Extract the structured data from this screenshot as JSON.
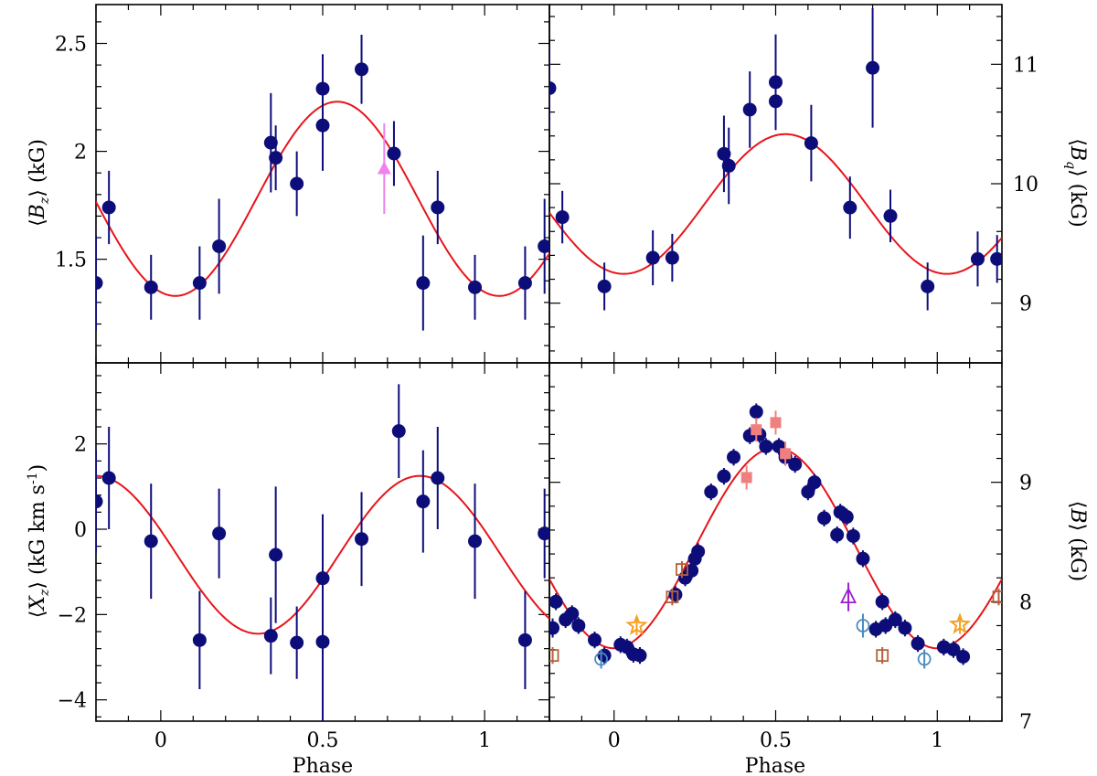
{
  "figure": {
    "xlabel": "Phase",
    "xticks": [
      "0",
      "0.5",
      "1"
    ],
    "xlim": [
      -0.2,
      1.2
    ]
  },
  "chart_data": [
    {
      "type": "scatter",
      "panel": "top-left",
      "ylabel": "⟨B_z⟩ (kG)",
      "ylabel_parts": {
        "pre": "⟨",
        "sym": "B",
        "sub": "z",
        "post": "⟩  (kG)"
      },
      "ylim": [
        1.02,
        2.68
      ],
      "yticks": [
        "1.5",
        "2",
        "2.5"
      ],
      "ytick_values": [
        1.5,
        2.0,
        2.5
      ],
      "fit": {
        "mean": 1.78,
        "amp": 0.45,
        "peak_phase": 0.545
      },
      "series": [
        {
          "name": "data",
          "marker": "filled-circle",
          "color": "#0d0d7a",
          "x": [
            -0.2,
            -0.16,
            -0.03,
            0.12,
            0.18,
            0.34,
            0.355,
            0.42,
            0.5,
            0.5,
            0.62,
            0.72,
            0.81,
            0.855,
            0.97,
            1.125,
            1.185
          ],
          "y": [
            1.39,
            1.74,
            1.37,
            1.39,
            1.56,
            2.04,
            1.97,
            1.85,
            2.29,
            2.12,
            2.38,
            1.99,
            1.39,
            1.74,
            1.37,
            1.39,
            1.56
          ],
          "err": [
            0.22,
            0.17,
            0.15,
            0.17,
            0.22,
            0.23,
            0.15,
            0.15,
            0.16,
            0.21,
            0.16,
            0.15,
            0.22,
            0.17,
            0.15,
            0.17,
            0.22
          ]
        },
        {
          "name": "additional",
          "marker": "filled-triangle",
          "color": "#ee82ee",
          "x": [
            0.69
          ],
          "y": [
            1.92
          ],
          "err": [
            0.21
          ]
        }
      ]
    },
    {
      "type": "scatter",
      "panel": "top-right",
      "ylabel": "⟨B_q⟩ (kG)",
      "ylabel_parts": {
        "pre": "⟨",
        "sym": "B",
        "sub": "q",
        "post": "⟩  (kG)"
      },
      "ylim": [
        8.5,
        11.5
      ],
      "yticks": [
        "9",
        "10",
        "11"
      ],
      "ytick_values": [
        9,
        10,
        11
      ],
      "fit": {
        "mean": 9.83,
        "amp": 0.585,
        "peak_phase": 0.53
      },
      "series": [
        {
          "name": "data",
          "marker": "filled-circle",
          "color": "#0d0d7a",
          "x": [
            -0.2,
            -0.16,
            -0.03,
            0.12,
            0.18,
            0.34,
            0.355,
            0.42,
            0.5,
            0.5,
            0.61,
            0.73,
            0.8,
            0.855,
            0.97,
            1.125,
            1.185
          ],
          "y": [
            10.8,
            9.72,
            9.14,
            9.38,
            9.38,
            10.25,
            10.15,
            10.62,
            10.69,
            10.85,
            10.34,
            9.8,
            10.97,
            9.73,
            9.14,
            9.37,
            9.37
          ],
          "err": [
            0.35,
            0.22,
            0.2,
            0.23,
            0.2,
            0.32,
            0.32,
            0.32,
            0.24,
            0.4,
            0.32,
            0.26,
            0.5,
            0.22,
            0.2,
            0.23,
            0.2
          ]
        }
      ]
    },
    {
      "type": "scatter",
      "panel": "bottom-left",
      "ylabel": "⟨X_z⟩ (kG km s⁻¹)",
      "ylabel_parts": {
        "pre": "⟨",
        "sym": "X",
        "sub": "z",
        "post": "⟩  (kG km s",
        "sup": "-1",
        "post2": ")"
      },
      "ylim": [
        -4.5,
        3.9
      ],
      "yticks": [
        "−4",
        "−2",
        "0",
        "2"
      ],
      "ytick_values": [
        -4,
        -2,
        0,
        2
      ],
      "fit": {
        "mean": -0.6,
        "amp": 1.85,
        "peak_phase": 0.8
      },
      "series": [
        {
          "name": "data",
          "marker": "filled-circle",
          "color": "#0d0d7a",
          "x": [
            -0.2,
            -0.16,
            -0.03,
            0.12,
            0.18,
            0.34,
            0.355,
            0.42,
            0.5,
            0.5,
            0.62,
            0.735,
            0.81,
            0.855,
            0.97,
            1.125,
            1.185
          ],
          "y": [
            0.65,
            1.2,
            -0.28,
            -2.6,
            -0.1,
            -2.5,
            -0.6,
            -2.66,
            -1.15,
            -2.64,
            -0.23,
            2.3,
            0.65,
            1.2,
            -0.28,
            -2.6,
            -0.1
          ],
          "err": [
            1.2,
            1.2,
            1.35,
            1.15,
            1.05,
            0.9,
            1.6,
            0.85,
            1.5,
            1.9,
            1.1,
            1.1,
            1.2,
            1.2,
            1.35,
            1.15,
            1.05
          ]
        }
      ]
    },
    {
      "type": "scatter",
      "panel": "bottom-right",
      "ylabel": "⟨B⟩ (kG)",
      "ylabel_parts": {
        "pre": "⟨",
        "sym": "B",
        "sub": "",
        "post": "⟩  (kG)"
      },
      "ylim": [
        7.0,
        10.0
      ],
      "yticks": [
        "7",
        "8",
        "9"
      ],
      "ytick_values": [
        7,
        8,
        9
      ],
      "fit": {
        "mean": 8.45,
        "amp": 0.84,
        "peak_phase": 0.5
      },
      "series": [
        {
          "name": "main",
          "marker": "filled-circle",
          "color": "#0d0d7a",
          "x": [
            -0.19,
            -0.18,
            -0.15,
            -0.13,
            -0.11,
            -0.06,
            -0.03,
            0.02,
            0.04,
            0.06,
            0.08,
            0.19,
            0.22,
            0.24,
            0.25,
            0.26,
            0.3,
            0.34,
            0.37,
            0.42,
            0.44,
            0.45,
            0.47,
            0.51,
            0.53,
            0.56,
            0.6,
            0.62,
            0.65,
            0.69,
            0.7,
            0.72,
            0.74,
            0.77,
            0.81,
            0.83,
            0.84,
            0.87,
            0.9,
            0.94,
            1.02,
            1.05,
            1.08
          ],
          "y": [
            7.78,
            8.0,
            7.85,
            7.9,
            7.8,
            7.68,
            7.55,
            7.64,
            7.62,
            7.56,
            7.55,
            8.06,
            8.2,
            8.26,
            8.36,
            8.42,
            8.92,
            9.05,
            9.21,
            9.39,
            9.59,
            9.4,
            9.3,
            9.3,
            9.21,
            9.15,
            8.92,
            9.0,
            8.7,
            8.56,
            8.75,
            8.71,
            8.55,
            8.36,
            7.77,
            8.0,
            7.8,
            7.85,
            7.78,
            7.65,
            7.62,
            7.6,
            7.54
          ],
          "err": [
            0.08,
            0.07,
            0.07,
            0.07,
            0.07,
            0.07,
            0.07,
            0.07,
            0.07,
            0.07,
            0.07,
            0.07,
            0.07,
            0.07,
            0.07,
            0.07,
            0.07,
            0.07,
            0.07,
            0.07,
            0.07,
            0.07,
            0.07,
            0.07,
            0.07,
            0.07,
            0.07,
            0.07,
            0.07,
            0.07,
            0.07,
            0.07,
            0.07,
            0.07,
            0.07,
            0.07,
            0.07,
            0.07,
            0.07,
            0.07,
            0.07,
            0.07,
            0.07
          ]
        },
        {
          "name": "salmon-squares",
          "marker": "filled-square",
          "color": "#f08080",
          "x": [
            0.41,
            0.44,
            0.5,
            0.53
          ],
          "y": [
            9.04,
            9.44,
            9.5,
            9.24
          ],
          "err": [
            0.1,
            0.1,
            0.1,
            0.1
          ]
        },
        {
          "name": "brown-squares",
          "marker": "open-square",
          "color": "#b5603a",
          "x": [
            -0.19,
            0.18,
            0.21,
            0.83,
            1.19
          ],
          "y": [
            7.55,
            8.04,
            8.27,
            7.55,
            8.04
          ],
          "err": [
            0.07,
            0.07,
            0.07,
            0.07,
            0.07
          ]
        },
        {
          "name": "blue-circles",
          "marker": "open-circle",
          "color": "#4a8bbe",
          "x": [
            -0.04,
            0.77,
            0.96
          ],
          "y": [
            7.52,
            7.8,
            7.52
          ],
          "err": [
            0.08,
            0.1,
            0.08
          ]
        },
        {
          "name": "orange-stars",
          "marker": "open-star",
          "color": "#f5a020",
          "x": [
            0.07,
            1.07
          ],
          "y": [
            7.8,
            7.81
          ],
          "err": [
            0.08,
            0.08
          ]
        },
        {
          "name": "purple-triangles",
          "marker": "open-triangle",
          "color": "#9a1fd0",
          "x": [
            0.725
          ],
          "y": [
            8.04
          ],
          "err": [
            0.12
          ]
        }
      ]
    }
  ]
}
